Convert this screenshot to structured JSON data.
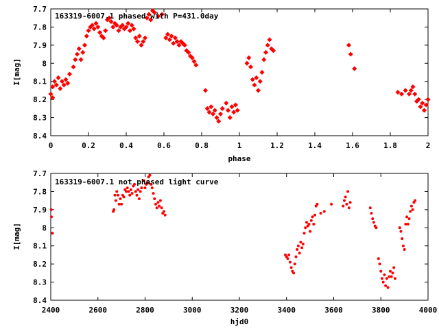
{
  "chart_data": [
    {
      "type": "scatter",
      "title": "163319-6007.1 phased with P=431.0day",
      "xlabel": "phase",
      "ylabel": "I[mag]",
      "xlim": [
        0,
        2
      ],
      "ylim": [
        7.7,
        8.4
      ],
      "y_inverted": true,
      "grid": false,
      "xticks": [
        "0",
        "0.2",
        "0.4",
        "0.6",
        "0.8",
        "1",
        "1.2",
        "1.4",
        "1.6",
        "1.8",
        "2"
      ],
      "xtick_values": [
        0,
        0.2,
        0.4,
        0.6,
        0.8,
        1.0,
        1.2,
        1.4,
        1.6,
        1.8,
        2.0
      ],
      "yticks": [
        "7.7",
        "7.8",
        "7.9",
        "8",
        "8.1",
        "8.2",
        "8.3",
        "8.4"
      ],
      "ytick_values": [
        7.7,
        7.8,
        7.9,
        8.0,
        8.1,
        8.2,
        8.3,
        8.4
      ],
      "color": "#ff0000",
      "marker": "star",
      "points": [
        [
          0.0,
          8.17
        ],
        [
          0.01,
          8.19
        ],
        [
          0.01,
          8.13
        ],
        [
          0.02,
          8.1
        ],
        [
          0.03,
          8.12
        ],
        [
          0.04,
          8.08
        ],
        [
          0.05,
          8.14
        ],
        [
          0.06,
          8.1
        ],
        [
          0.07,
          8.12
        ],
        [
          0.08,
          8.09
        ],
        [
          0.09,
          8.11
        ],
        [
          0.1,
          8.06
        ],
        [
          0.12,
          8.02
        ],
        [
          0.13,
          7.98
        ],
        [
          0.14,
          7.95
        ],
        [
          0.15,
          7.92
        ],
        [
          0.16,
          7.98
        ],
        [
          0.17,
          7.94
        ],
        [
          0.18,
          7.9
        ],
        [
          0.19,
          7.85
        ],
        [
          0.2,
          7.82
        ],
        [
          0.21,
          7.8
        ],
        [
          0.22,
          7.79
        ],
        [
          0.23,
          7.81
        ],
        [
          0.24,
          7.78
        ],
        [
          0.25,
          7.8
        ],
        [
          0.26,
          7.83
        ],
        [
          0.27,
          7.85
        ],
        [
          0.28,
          7.86
        ],
        [
          0.29,
          7.82
        ],
        [
          0.3,
          7.76
        ],
        [
          0.31,
          7.75
        ],
        [
          0.32,
          7.77
        ],
        [
          0.33,
          7.8
        ],
        [
          0.34,
          7.78
        ],
        [
          0.35,
          7.79
        ],
        [
          0.36,
          7.82
        ],
        [
          0.37,
          7.8
        ],
        [
          0.38,
          7.79
        ],
        [
          0.39,
          7.81
        ],
        [
          0.4,
          7.8
        ],
        [
          0.41,
          7.78
        ],
        [
          0.42,
          7.82
        ],
        [
          0.43,
          7.79
        ],
        [
          0.44,
          7.81
        ],
        [
          0.45,
          7.86
        ],
        [
          0.46,
          7.88
        ],
        [
          0.47,
          7.85
        ],
        [
          0.48,
          7.9
        ],
        [
          0.49,
          7.88
        ],
        [
          0.5,
          7.86
        ],
        [
          0.51,
          7.75
        ],
        [
          0.52,
          7.73
        ],
        [
          0.53,
          7.76
        ],
        [
          0.54,
          7.71
        ],
        [
          0.55,
          7.72
        ],
        [
          0.57,
          7.74
        ],
        [
          0.59,
          7.73
        ],
        [
          0.61,
          7.86
        ],
        [
          0.62,
          7.84
        ],
        [
          0.63,
          7.87
        ],
        [
          0.64,
          7.85
        ],
        [
          0.65,
          7.89
        ],
        [
          0.66,
          7.86
        ],
        [
          0.67,
          7.88
        ],
        [
          0.68,
          7.9
        ],
        [
          0.69,
          7.88
        ],
        [
          0.7,
          7.89
        ],
        [
          0.71,
          7.9
        ],
        [
          0.72,
          7.93
        ],
        [
          0.73,
          7.94
        ],
        [
          0.74,
          7.96
        ],
        [
          0.75,
          7.97
        ],
        [
          0.76,
          7.99
        ],
        [
          0.77,
          8.01
        ],
        [
          0.82,
          8.15
        ],
        [
          0.83,
          8.25
        ],
        [
          0.84,
          8.27
        ],
        [
          0.85,
          8.24
        ],
        [
          0.86,
          8.28
        ],
        [
          0.87,
          8.26
        ],
        [
          0.88,
          8.3
        ],
        [
          0.89,
          8.32
        ],
        [
          0.9,
          8.28
        ],
        [
          0.91,
          8.25
        ],
        [
          0.93,
          8.22
        ],
        [
          0.94,
          8.26
        ],
        [
          0.95,
          8.3
        ],
        [
          0.96,
          8.24
        ],
        [
          0.97,
          8.27
        ],
        [
          0.98,
          8.23
        ],
        [
          0.99,
          8.26
        ],
        [
          1.04,
          8.0
        ],
        [
          1.05,
          7.97
        ],
        [
          1.06,
          8.02
        ],
        [
          1.07,
          8.09
        ],
        [
          1.08,
          8.12
        ],
        [
          1.09,
          8.08
        ],
        [
          1.1,
          8.15
        ],
        [
          1.11,
          8.1
        ],
        [
          1.12,
          8.05
        ],
        [
          1.13,
          7.98
        ],
        [
          1.14,
          7.94
        ],
        [
          1.15,
          7.9
        ],
        [
          1.16,
          7.87
        ],
        [
          1.17,
          7.92
        ],
        [
          1.18,
          7.93
        ],
        [
          1.58,
          7.9
        ],
        [
          1.59,
          7.95
        ],
        [
          1.61,
          8.03
        ],
        [
          1.84,
          8.16
        ],
        [
          1.86,
          8.17
        ],
        [
          1.88,
          8.15
        ],
        [
          1.9,
          8.17
        ],
        [
          1.91,
          8.15
        ],
        [
          1.92,
          8.13
        ],
        [
          1.93,
          8.17
        ],
        [
          1.94,
          8.21
        ],
        [
          1.95,
          8.2
        ],
        [
          1.96,
          8.24
        ],
        [
          1.97,
          8.22
        ],
        [
          1.98,
          8.26
        ],
        [
          1.99,
          8.23
        ],
        [
          2.0,
          8.2
        ]
      ]
    },
    {
      "type": "scatter",
      "title": "163319-6007.1 not phased light curve",
      "xlabel": "hjd0",
      "ylabel": "I[mag]",
      "xlim": [
        2400,
        4000
      ],
      "ylim": [
        7.7,
        8.4
      ],
      "y_inverted": true,
      "grid": false,
      "xticks": [
        "2400",
        "2600",
        "2800",
        "3000",
        "3200",
        "3400",
        "3600",
        "3800",
        "4000"
      ],
      "xtick_values": [
        2400,
        2600,
        2800,
        3000,
        3200,
        3400,
        3600,
        3800,
        4000
      ],
      "yticks": [
        "7.7",
        "7.8",
        "7.9",
        "8",
        "8.1",
        "8.2",
        "8.3",
        "8.4"
      ],
      "ytick_values": [
        7.7,
        7.8,
        7.9,
        8.0,
        8.1,
        8.2,
        8.3,
        8.4
      ],
      "color": "#ff0000",
      "marker": "dot",
      "points": [
        [
          2402,
          7.9
        ],
        [
          2403,
          7.94
        ],
        [
          2407,
          8.03
        ],
        [
          2665,
          7.91
        ],
        [
          2668,
          7.9
        ],
        [
          2672,
          7.82
        ],
        [
          2676,
          7.85
        ],
        [
          2680,
          7.8
        ],
        [
          2685,
          7.82
        ],
        [
          2690,
          7.87
        ],
        [
          2695,
          7.84
        ],
        [
          2700,
          7.87
        ],
        [
          2705,
          7.82
        ],
        [
          2710,
          7.83
        ],
        [
          2715,
          7.79
        ],
        [
          2720,
          7.8
        ],
        [
          2725,
          7.78
        ],
        [
          2730,
          7.8
        ],
        [
          2735,
          7.82
        ],
        [
          2740,
          7.79
        ],
        [
          2745,
          7.81
        ],
        [
          2750,
          7.77
        ],
        [
          2755,
          7.76
        ],
        [
          2760,
          7.8
        ],
        [
          2765,
          7.82
        ],
        [
          2770,
          7.79
        ],
        [
          2775,
          7.84
        ],
        [
          2780,
          7.8
        ],
        [
          2785,
          7.78
        ],
        [
          2795,
          7.74
        ],
        [
          2800,
          7.78
        ],
        [
          2805,
          7.76
        ],
        [
          2810,
          7.75
        ],
        [
          2815,
          7.72
        ],
        [
          2820,
          7.71
        ],
        [
          2825,
          7.76
        ],
        [
          2830,
          7.78
        ],
        [
          2835,
          7.81
        ],
        [
          2840,
          7.84
        ],
        [
          2845,
          7.87
        ],
        [
          2850,
          7.89
        ],
        [
          2855,
          7.86
        ],
        [
          2860,
          7.88
        ],
        [
          2865,
          7.85
        ],
        [
          2870,
          7.89
        ],
        [
          2875,
          7.92
        ],
        [
          2880,
          7.91
        ],
        [
          2885,
          7.93
        ],
        [
          3395,
          8.15
        ],
        [
          3400,
          8.16
        ],
        [
          3405,
          8.17
        ],
        [
          3410,
          8.15
        ],
        [
          3415,
          8.19
        ],
        [
          3420,
          8.22
        ],
        [
          3425,
          8.24
        ],
        [
          3430,
          8.25
        ],
        [
          3435,
          8.2
        ],
        [
          3440,
          8.16
        ],
        [
          3445,
          8.12
        ],
        [
          3450,
          8.1
        ],
        [
          3455,
          8.14
        ],
        [
          3460,
          8.08
        ],
        [
          3465,
          8.11
        ],
        [
          3470,
          8.09
        ],
        [
          3475,
          8.03
        ],
        [
          3480,
          8.0
        ],
        [
          3485,
          7.97
        ],
        [
          3490,
          7.99
        ],
        [
          3495,
          7.98
        ],
        [
          3500,
          8.02
        ],
        [
          3505,
          7.96
        ],
        [
          3510,
          7.94
        ],
        [
          3515,
          7.98
        ],
        [
          3520,
          7.93
        ],
        [
          3525,
          7.88
        ],
        [
          3530,
          7.87
        ],
        [
          3545,
          7.92
        ],
        [
          3560,
          7.91
        ],
        [
          3590,
          7.87
        ],
        [
          3640,
          7.88
        ],
        [
          3645,
          7.85
        ],
        [
          3650,
          7.83
        ],
        [
          3655,
          7.87
        ],
        [
          3660,
          7.8
        ],
        [
          3665,
          7.89
        ],
        [
          3670,
          7.86
        ],
        [
          3755,
          7.89
        ],
        [
          3760,
          7.92
        ],
        [
          3765,
          7.95
        ],
        [
          3770,
          7.97
        ],
        [
          3775,
          7.99
        ],
        [
          3780,
          8.0
        ],
        [
          3790,
          8.17
        ],
        [
          3795,
          8.2
        ],
        [
          3800,
          8.24
        ],
        [
          3805,
          8.28
        ],
        [
          3810,
          8.3
        ],
        [
          3815,
          8.26
        ],
        [
          3820,
          8.32
        ],
        [
          3825,
          8.28
        ],
        [
          3830,
          8.33
        ],
        [
          3835,
          8.27
        ],
        [
          3840,
          8.24
        ],
        [
          3845,
          8.27
        ],
        [
          3850,
          8.25
        ],
        [
          3855,
          8.22
        ],
        [
          3860,
          8.28
        ],
        [
          3880,
          8.0
        ],
        [
          3885,
          8.02
        ],
        [
          3890,
          8.06
        ],
        [
          3895,
          8.1
        ],
        [
          3900,
          8.12
        ],
        [
          3905,
          7.98
        ],
        [
          3910,
          7.94
        ],
        [
          3915,
          7.98
        ],
        [
          3920,
          7.95
        ],
        [
          3925,
          7.91
        ],
        [
          3930,
          7.88
        ],
        [
          3935,
          7.9
        ],
        [
          3940,
          7.86
        ],
        [
          3945,
          7.85
        ]
      ]
    }
  ]
}
